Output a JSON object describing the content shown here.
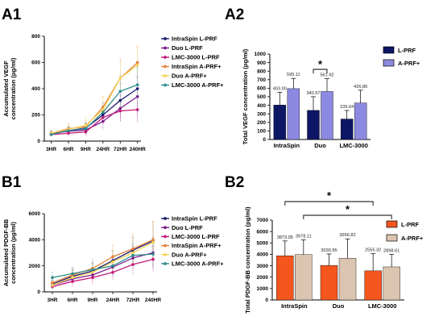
{
  "panels": {
    "a1": "A1",
    "a2": "A2",
    "b1": "B1",
    "b2": "B2"
  },
  "chart_data": [
    {
      "id": "A1",
      "type": "line",
      "ylabel": "Accumulated VEGF concentration (pg/ml)",
      "ylabel_lines": [
        "Accumulated VEGF",
        "concentration (pg/ml)"
      ],
      "categories": [
        "3HR",
        "6HR",
        "9HR",
        "24HR",
        "72HR",
        "240HR"
      ],
      "ylim": [
        0,
        800
      ],
      "yticks": [
        0,
        200,
        400,
        600,
        800
      ],
      "legend_position": "right",
      "series": [
        {
          "name": "IntraSpin L-PRF",
          "color": "#1a1a6e",
          "values": [
            60,
            80,
            100,
            200,
            310,
            400
          ],
          "err": [
            20,
            30,
            40,
            60,
            130,
            180
          ]
        },
        {
          "name": "Duo L-PRF",
          "color": "#7a1f8c",
          "values": [
            60,
            75,
            85,
            150,
            250,
            340
          ],
          "err": [
            15,
            25,
            35,
            60,
            100,
            150
          ]
        },
        {
          "name": "LMC-3000 L-PRF",
          "color": "#c4187a",
          "values": [
            50,
            60,
            70,
            180,
            230,
            240
          ],
          "err": [
            15,
            20,
            30,
            50,
            80,
            100
          ]
        },
        {
          "name": "IntraSpin A-PRF+",
          "color": "#e8823a",
          "values": [
            60,
            95,
            110,
            260,
            480,
            600
          ],
          "err": [
            20,
            40,
            50,
            80,
            150,
            120
          ]
        },
        {
          "name": "Duo A-PRF+",
          "color": "#f3d35a",
          "values": [
            60,
            90,
            120,
            240,
            480,
            580
          ],
          "err": [
            20,
            30,
            60,
            100,
            120,
            150
          ]
        },
        {
          "name": "LMC-3000 A-PRF+",
          "color": "#2e8b8b",
          "values": [
            50,
            80,
            95,
            220,
            380,
            430
          ],
          "err": [
            15,
            30,
            40,
            70,
            120,
            130
          ]
        }
      ]
    },
    {
      "id": "A2",
      "type": "bar",
      "ylabel": "Total VEGF concentration (pg/ml)",
      "categories": [
        "IntraSpin",
        "Duo",
        "LMC-3000"
      ],
      "ylim": [
        0,
        1000
      ],
      "yticks": [
        0,
        100,
        200,
        300,
        400,
        500,
        600,
        700,
        800,
        900,
        1000
      ],
      "legend_position": "right",
      "series": [
        {
          "name": "L-PRF",
          "color": "#0d1665",
          "values": [
            403.0,
            340.57,
            239.64
          ],
          "labels": [
            "403.00",
            "340.57",
            "239.64"
          ],
          "err": [
            150,
            160,
            100
          ]
        },
        {
          "name": "A-PRF+",
          "color": "#8c8ae0",
          "values": [
            595.11,
            561.92,
            426.86
          ],
          "labels": [
            "595.11",
            "561.92",
            "426.86"
          ],
          "err": [
            120,
            150,
            150
          ]
        }
      ],
      "significance": [
        {
          "between": [
            "Duo L-PRF",
            "Duo A-PRF+"
          ],
          "mark": "*"
        }
      ]
    },
    {
      "id": "B1",
      "type": "line",
      "ylabel": "Accumulated PDGF-BB concentration (pg/ml)",
      "ylabel_lines": [
        "Accumulated PDGF-BB",
        "concentration (pg/ml)"
      ],
      "categories": [
        "3HR",
        "6HR",
        "9HR",
        "24HR",
        "72HR",
        "240HR"
      ],
      "ylim": [
        0,
        6000
      ],
      "yticks": [
        0,
        2000,
        4000,
        6000
      ],
      "legend_position": "right",
      "series": [
        {
          "name": "IntraSpin L-PRF",
          "color": "#1a1a6e",
          "values": [
            600,
            1200,
            1600,
            2400,
            3200,
            3900
          ],
          "err": [
            300,
            500,
            600,
            800,
            1000,
            1500
          ]
        },
        {
          "name": "Duo L-PRF",
          "color": "#7a1f8c",
          "values": [
            500,
            1000,
            1300,
            1900,
            2600,
            3000
          ],
          "err": [
            300,
            400,
            500,
            700,
            900,
            1200
          ]
        },
        {
          "name": "LMC-3000 L-PRF",
          "color": "#c4187a",
          "values": [
            400,
            800,
            1100,
            1500,
            2100,
            2500
          ],
          "err": [
            200,
            400,
            500,
            600,
            800,
            1000
          ]
        },
        {
          "name": "IntraSpin A-PRF+",
          "color": "#e8823a",
          "values": [
            700,
            1300,
            1800,
            2700,
            3300,
            4000
          ],
          "err": [
            300,
            500,
            700,
            900,
            1100,
            1400
          ]
        },
        {
          "name": "Duo A-PRF+",
          "color": "#f3d35a",
          "values": [
            500,
            1100,
            1500,
            2300,
            3000,
            3800
          ],
          "err": [
            300,
            500,
            600,
            900,
            1200,
            1600
          ]
        },
        {
          "name": "LMC-3000 A-PRF+",
          "color": "#2e8b8b",
          "values": [
            1100,
            1400,
            1700,
            2000,
            2800,
            2900
          ],
          "err": [
            400,
            500,
            600,
            700,
            900,
            1100
          ]
        }
      ]
    },
    {
      "id": "B2",
      "type": "bar",
      "ylabel": "Total PDGF-BB concentration (pg/ml)",
      "categories": [
        "IntraSpin",
        "Duo",
        "LMC-3000"
      ],
      "ylim": [
        0,
        7000
      ],
      "yticks": [
        0,
        1000,
        2000,
        3000,
        4000,
        5000,
        6000,
        7000
      ],
      "legend_position": "right",
      "series": [
        {
          "name": "L-PRF",
          "color": "#f4561d",
          "values": [
            3873.05,
            3030.95,
            2555.32
          ],
          "labels": [
            "3873.05",
            "3030.95",
            "2555.32"
          ],
          "err": [
            1300,
            1000,
            1500
          ]
        },
        {
          "name": "A-PRF+",
          "color": "#dcc5b0",
          "values": [
            3978.11,
            3656.82,
            2898.61
          ],
          "labels": [
            "3978.11",
            "3656.82",
            "2898.61"
          ],
          "err": [
            1300,
            1700,
            1100
          ]
        }
      ],
      "significance": [
        {
          "between": [
            "IntraSpin L-PRF",
            "LMC-3000 L-PRF"
          ],
          "mark": "*"
        },
        {
          "between": [
            "IntraSpin A-PRF+",
            "LMC-3000 A-PRF+"
          ],
          "mark": "*"
        }
      ]
    }
  ]
}
